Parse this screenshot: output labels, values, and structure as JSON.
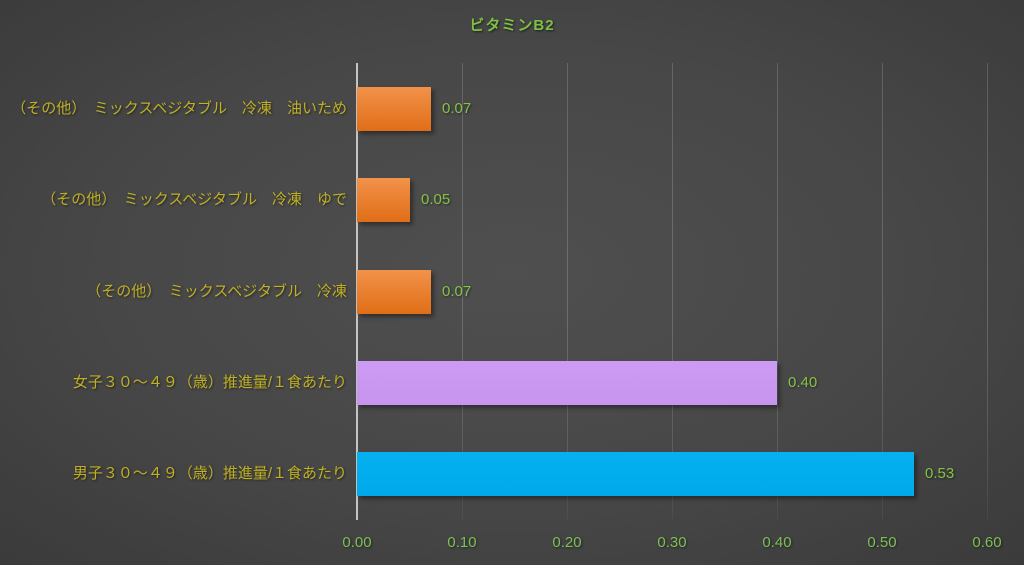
{
  "chart_data": {
    "type": "bar",
    "orientation": "horizontal",
    "title": "ビタミンB2",
    "categories": [
      "（その他）　ミックスベジタブル　冷凍　油いため",
      "（その他）　ミックスベジタブル　冷凍　ゆで",
      "（その他）　ミックスベジタブル　冷凍",
      "女子３０～４９（歳）推進量/１食あたり",
      "男子３０～４９（歳）推進量/１食あたり"
    ],
    "values": [
      0.07,
      0.05,
      0.07,
      0.4,
      0.53
    ],
    "value_labels": [
      "0.07",
      "0.05",
      "0.07",
      "0.40",
      "0.53"
    ],
    "bar_styles": [
      {
        "top": "#F2924A",
        "bottom": "#E06E17"
      },
      {
        "top": "#F2924A",
        "bottom": "#E06E17"
      },
      {
        "top": "#F2924A",
        "bottom": "#E06E17"
      },
      {
        "top": "#CD9BF3",
        "bottom": "#C795EF"
      },
      {
        "top": "#05B1F0",
        "bottom": "#00A9EA"
      }
    ],
    "xlabel": "",
    "ylabel": "",
    "xlim": [
      0,
      0.6
    ],
    "x_ticks": [
      "0.00",
      "0.10",
      "0.20",
      "0.30",
      "0.40",
      "0.50",
      "0.60"
    ],
    "grid": true,
    "legend": "none",
    "colors": {
      "title": "#7CC143",
      "value_label": "#84C346",
      "tick_label": "#7CC154",
      "category_label": "#BFB025",
      "axis_line": "#C4C4C4",
      "background_center": "#4F4F4F",
      "background_edge": "#242424"
    }
  }
}
